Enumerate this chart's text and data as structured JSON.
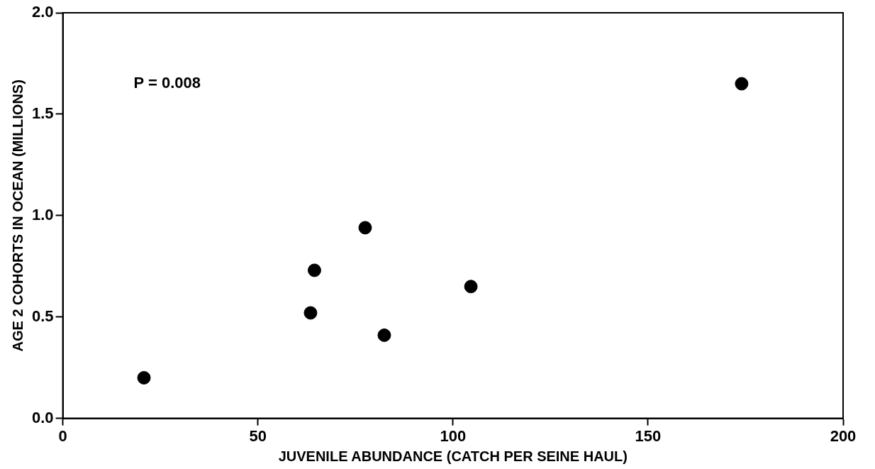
{
  "chart_data": {
    "type": "scatter",
    "xlabel": "JUVENILE ABUNDANCE (CATCH PER SEINE HAUL)",
    "ylabel": "AGE 2 COHORTS IN OCEAN (MILLIONS)",
    "x": [
      20.8,
      63.5,
      64.5,
      77.5,
      82.4,
      104.6,
      174
    ],
    "values": [
      0.2,
      0.52,
      0.73,
      0.94,
      0.41,
      0.65,
      1.65
    ],
    "color": "#000000",
    "marker": "circle",
    "grid": false,
    "xlim": [
      0,
      200
    ],
    "xticks": [
      0,
      50,
      100,
      150,
      200
    ],
    "ylim": [
      0,
      2
    ],
    "yticks": [
      {
        "value": 0,
        "label": "0.0"
      },
      {
        "value": 0.5,
        "label": "0.5"
      },
      {
        "value": 1,
        "label": "1.0"
      },
      {
        "value": 1.5,
        "label": "1.5"
      },
      {
        "value": 2,
        "label": "2.0"
      }
    ],
    "annotations": [
      "P = 0.008"
    ]
  }
}
